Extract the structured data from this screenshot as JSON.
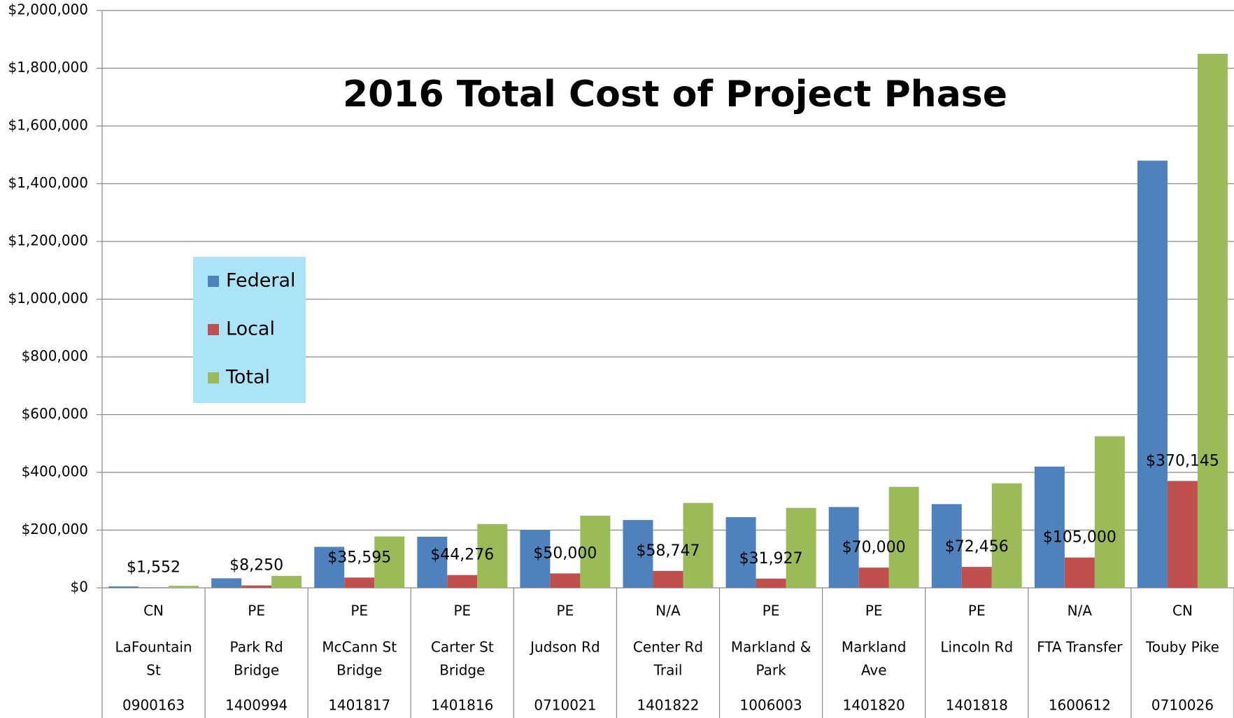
{
  "chart_data": {
    "type": "bar",
    "title": "2016 Total Cost of Project Phase",
    "categories": [
      [
        "LaFountain",
        "St"
      ],
      [
        "Park Rd",
        "Bridge"
      ],
      [
        "McCann St",
        "Bridge"
      ],
      [
        "Carter St",
        "Bridge"
      ],
      [
        "Judson Rd"
      ],
      [
        "Center Rd",
        "Trail"
      ],
      [
        "Markland &",
        "Park"
      ],
      [
        "Markland",
        "Ave"
      ],
      [
        "Lincoln Rd"
      ],
      [
        "FTA Transfer"
      ],
      [
        "Touby Pike"
      ]
    ],
    "phases": [
      "CN",
      "PE",
      "PE",
      "PE",
      "PE",
      "N/A",
      "PE",
      "PE",
      "PE",
      "N/A",
      "CN"
    ],
    "project_ids": [
      "0900163",
      "1400994",
      "1401817",
      "1401816",
      "0710021",
      "1401822",
      "1006003",
      "1401820",
      "1401818",
      "1600612",
      "0710026"
    ],
    "series": [
      {
        "name": "Federal",
        "color": "#4f81bd",
        "values": [
          5000,
          33000,
          142000,
          177000,
          200000,
          235000,
          245000,
          280000,
          290000,
          420000,
          1480000
        ]
      },
      {
        "name": "Local",
        "color": "#c0504d",
        "values": [
          1552,
          8250,
          35595,
          44276,
          50000,
          58747,
          31927,
          70000,
          72456,
          105000,
          370145
        ],
        "value_labels": [
          "$1,552",
          "$8,250",
          "$35,595",
          "$44,276",
          "$50,000",
          "$58,747",
          "$31,927",
          "$70,000",
          "$72,456",
          "$105,000",
          "$370,145"
        ]
      },
      {
        "name": "Total",
        "color": "#9bbb59",
        "values": [
          7000,
          41250,
          178000,
          221000,
          250000,
          294000,
          277000,
          350000,
          362000,
          525000,
          1850000
        ]
      }
    ],
    "ylim": [
      0,
      2000000
    ],
    "yticks": [
      {
        "value": 0,
        "label": "$0"
      },
      {
        "value": 200000,
        "label": "$200,000"
      },
      {
        "value": 400000,
        "label": "$400,000"
      },
      {
        "value": 600000,
        "label": "$600,000"
      },
      {
        "value": 800000,
        "label": "$800,000"
      },
      {
        "value": 1000000,
        "label": "$1,000,000"
      },
      {
        "value": 1200000,
        "label": "$1,200,000"
      },
      {
        "value": 1400000,
        "label": "$1,400,000"
      },
      {
        "value": 1600000,
        "label": "$1,600,000"
      },
      {
        "value": 1800000,
        "label": "$1,800,000"
      },
      {
        "value": 2000000,
        "label": "$2,000,000"
      }
    ],
    "grid": true,
    "legend_position": "left"
  }
}
